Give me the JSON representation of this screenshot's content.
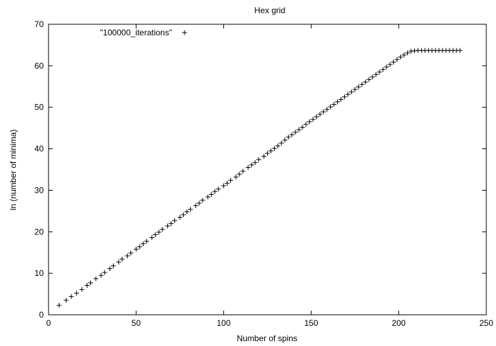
{
  "chart_data": {
    "type": "scatter",
    "title": "Hex grid",
    "xlabel": "Number of spins",
    "ylabel": "ln (number of minima)",
    "xlim": [
      0,
      250
    ],
    "ylim": [
      0,
      70
    ],
    "xticks": [
      0,
      50,
      100,
      150,
      200,
      250
    ],
    "yticks": [
      0,
      10,
      20,
      30,
      40,
      50,
      60,
      70
    ],
    "grid": false,
    "legend_position": "top-left",
    "marker": "+",
    "color": "#000000",
    "series": [
      {
        "name": "\"100000_iterations\"",
        "x": [
          6,
          10,
          13,
          16,
          19,
          22,
          24,
          27,
          30,
          32,
          35,
          37,
          40,
          42,
          45,
          47,
          50,
          52,
          54,
          56,
          59,
          61,
          63,
          65,
          68,
          70,
          72,
          75,
          77,
          79,
          81,
          84,
          86,
          88,
          91,
          93,
          95,
          97,
          100,
          102,
          104,
          107,
          109,
          111,
          114,
          116,
          118,
          120,
          123,
          125,
          127,
          129,
          131,
          133,
          135,
          137,
          139,
          141,
          143,
          145,
          147,
          149,
          151,
          153,
          155,
          157,
          159,
          161,
          163,
          165,
          167,
          169,
          171,
          173,
          175,
          177,
          179,
          181,
          183,
          185,
          187,
          189,
          191,
          193,
          195,
          197,
          199,
          201,
          203,
          205,
          207,
          209,
          211,
          213,
          215,
          217,
          219,
          221,
          223,
          225,
          227,
          229,
          231,
          233,
          235
        ],
        "y": [
          2.3,
          3.5,
          4.4,
          5.2,
          6.1,
          7.1,
          7.7,
          8.7,
          9.5,
          10.2,
          11.1,
          11.8,
          12.7,
          13.4,
          14.2,
          14.9,
          15.8,
          16.4,
          17.1,
          17.7,
          18.6,
          19.3,
          19.9,
          20.6,
          21.4,
          22.0,
          22.7,
          23.5,
          24.1,
          24.8,
          25.4,
          26.3,
          26.9,
          27.6,
          28.4,
          29.0,
          29.7,
          30.3,
          31.1,
          31.7,
          32.4,
          33.2,
          33.9,
          34.6,
          35.5,
          36.1,
          36.7,
          37.4,
          38.2,
          38.9,
          39.5,
          40.1,
          40.7,
          41.4,
          42.1,
          42.8,
          43.4,
          44.0,
          44.6,
          45.2,
          45.9,
          46.5,
          47.1,
          47.7,
          48.3,
          48.9,
          49.5,
          50.1,
          50.7,
          51.3,
          51.9,
          52.5,
          53.1,
          53.7,
          54.3,
          54.9,
          55.5,
          56.1,
          56.7,
          57.3,
          57.9,
          58.5,
          59.1,
          59.7,
          60.3,
          60.9,
          61.5,
          62.1,
          62.6,
          63.1,
          63.5,
          63.6,
          63.7,
          63.7,
          63.7,
          63.7,
          63.7,
          63.7,
          63.7,
          63.7,
          63.7,
          63.7,
          63.7,
          63.7,
          63.7
        ]
      }
    ]
  }
}
